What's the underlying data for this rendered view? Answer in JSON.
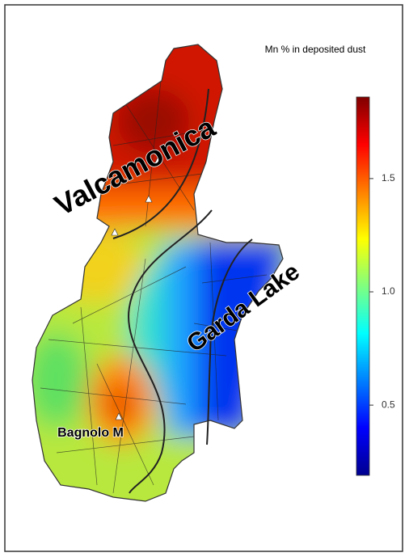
{
  "map": {
    "title": "Mn % in deposited dust",
    "labels": [
      "Valcamonica",
      "Garda Lake",
      "Bagnolo M"
    ],
    "colorbar": {
      "lim": [
        0.19,
        1.86
      ],
      "ticks": [
        0.5,
        {
          "value": 1,
          "label": "1.0"
        },
        1.5
      ]
    }
  }
}
